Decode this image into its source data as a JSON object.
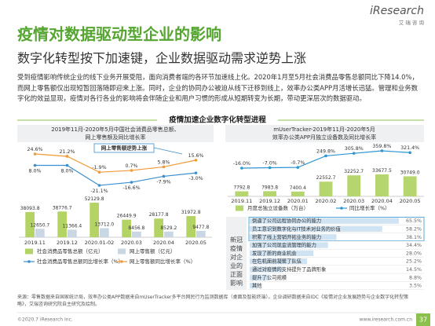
{
  "header": {
    "title": "疫情对数据驱动型企业的影响",
    "subtitle": "数字化转型按下加速键，企业数据驱动需求逆势上涨",
    "logo": "iResearch",
    "logo_sub": "艾 瑞 咨 询"
  },
  "intro": "受到疫情影响传统企业的线下业务开展受阻，面向消费者端的各环节加速线上化。2020年1月至5月社会消费品零售总额同比下降14.0%，而网上零售额仅出现短暂回落随即迎来上涨。同时，企业的协同办公被迫从线下迁移到线上，效率办公类APP月活增长迅猛。管理和业务数字化的效益显现，疫情对各行各业的影响将会伴随企业和用户习惯的形成从短期转变为长期，带动更深层次的数据驱动。",
  "section_label": "疫情加速企业数字化转型进程",
  "chart_data": [
    {
      "type": "combo",
      "title": [
        "2019年11月-2020年5月中国社会消费品零售总额、",
        "网上零售额及同比增长率"
      ],
      "annotation": "网上零售额逆势上涨",
      "categories": [
        "2019.11",
        "2019.12",
        "2020.01-02",
        "2020.03",
        "2020.04",
        "2020.05"
      ],
      "series": [
        {
          "name": "社会消费品零售总额（亿元）",
          "mark": "bar",
          "color": "#b3d465",
          "values": [
            38093.8,
            38776.7,
            52129.8,
            26449.9,
            28177.8,
            31972.8
          ],
          "value_labels": [
            "38093.8",
            "38776.7",
            "52129.8",
            "26449.9",
            "28177.8",
            "31972.8"
          ]
        },
        {
          "name": "网上零售额（亿元）",
          "mark": "bar",
          "color": "#c9d6e3",
          "values": [
            12650.7,
            11366.4,
            13712.0,
            8456.8,
            8529.2,
            9477.8
          ],
          "value_labels": [
            "12650.7",
            "11366.4",
            "13712.0",
            "8456.8",
            "8529.2",
            "9477.8"
          ]
        },
        {
          "name": "社会消费品零售总额同比增长率（%）",
          "mark": "line",
          "color": "#3b8fd0",
          "values": [
            8.0,
            8.0,
            -21.1,
            -16.6,
            -7.9,
            -3.0
          ],
          "value_labels": [
            "8.0%",
            "8.0%",
            "-21.1%",
            "-16.6%",
            "-7.9%",
            "-3.0%"
          ]
        },
        {
          "name": "网上零售额同比增长率（%）",
          "mark": "line",
          "color": "#f09a38",
          "values": [
            24.6,
            21.2,
            -1.9,
            0.7,
            5.8,
            15.6
          ],
          "value_labels": [
            "24.6%",
            "21.2%",
            "-1.9%",
            "0.7%",
            "5.8%",
            "15.6%"
          ]
        }
      ]
    },
    {
      "type": "combo",
      "title": [
        "mUserTracker-2019年11月-2020年5月",
        "效率办公类APP月独立设备数及同比增长率"
      ],
      "categories": [
        "2019.11",
        "2019.12",
        "2020.01",
        "2020.02",
        "2020.03",
        "2020.04",
        "2020.05"
      ],
      "series": [
        {
          "name": "月度总独立设备数（万台）",
          "mark": "bar",
          "color": "#b5d66e",
          "values": [
            7792.8,
            7983.8,
            7400.4,
            22552.7,
            32252.7,
            33677.5,
            30749.0
          ],
          "value_labels": [
            "7792.8",
            "7983.8",
            "7400.4",
            "22552.7",
            "32252.7",
            "33677.5",
            "30749.0"
          ]
        },
        {
          "name": "同比增长率（%）",
          "mark": "line",
          "color": "#2e95d3",
          "values": [
            -16.0,
            -7.0,
            -0.7,
            249.8,
            305.8,
            359.8,
            321.4
          ],
          "value_labels": [
            "-16.0%",
            "-7.0%",
            "-0.7%",
            "249.8%",
            "305.8%",
            "359.8%",
            "321.4%"
          ]
        }
      ]
    },
    {
      "type": "hbar",
      "title": "新冠疫情对企业的正面影响",
      "color": "#cfe3f3",
      "categories": [
        "倒逼了公司远程协同办公的能力",
        "员工意识到数字化与IT技术对业务的价值",
        "积累了线上营销开拓业务的能力",
        "加强了公司现金流管理的能力",
        "发现了新的商业机会",
        "在危机面前凝聚了队伍",
        "通过对疫情的支持提升了品牌形象",
        "提升了公司规模",
        "其他"
      ],
      "values": [
        65.5,
        58.2,
        38.1,
        34.4,
        28.0,
        25.2,
        14.5,
        8.8,
        3.5
      ],
      "value_labels": [
        "65.5%",
        "58.2%",
        "38.1%",
        "34.4%",
        "28.0%",
        "25.2%",
        "14.5%",
        "8.8%",
        "3.5%"
      ]
    }
  ],
  "source": "来源：零售数据来自国家统计局，效率办公类APP数据来自mUserTracker多平台网民行为监测数据库（桌面及智能终端）。企业调研数据来自IDC《疫情对企业发展趋势与企业数字化转型策略》，艾瑞咨询研究院自主研究及绘制。",
  "footer": {
    "copyright": "©2020.7 iResearch Inc.",
    "website": "www.iresearch.com.cn",
    "page": "37"
  }
}
